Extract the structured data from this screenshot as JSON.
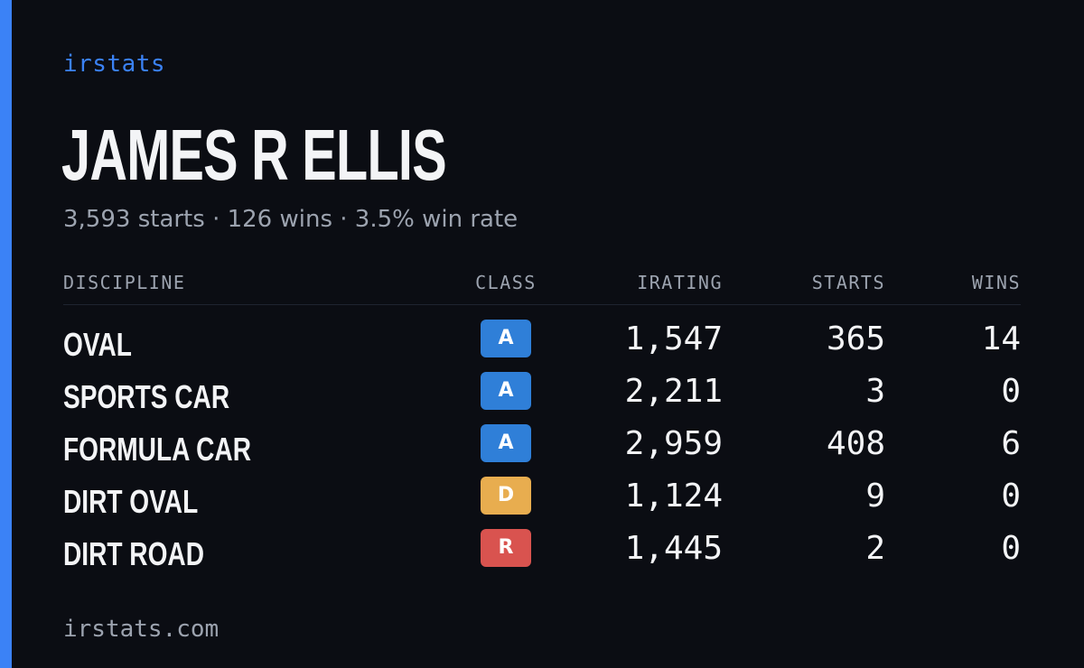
{
  "brand": "irstats",
  "driver": {
    "name": "JAMES R ELLIS",
    "summary": "3,593 starts · 126 wins · 3.5% win rate"
  },
  "columns": {
    "discipline": "DISCIPLINE",
    "class": "CLASS",
    "irating": "IRATING",
    "starts": "STARTS",
    "wins": "WINS"
  },
  "rows": [
    {
      "discipline": "OVAL",
      "class": "A",
      "class_color": "#2f7fd8",
      "irating": "1,547",
      "starts": "365",
      "wins": "14"
    },
    {
      "discipline": "SPORTS CAR",
      "class": "A",
      "class_color": "#2f7fd8",
      "irating": "2,211",
      "starts": "3",
      "wins": "0"
    },
    {
      "discipline": "FORMULA CAR",
      "class": "A",
      "class_color": "#2f7fd8",
      "irating": "2,959",
      "starts": "408",
      "wins": "6"
    },
    {
      "discipline": "DIRT OVAL",
      "class": "D",
      "class_color": "#e8ad4f",
      "irating": "1,124",
      "starts": "9",
      "wins": "0"
    },
    {
      "discipline": "DIRT ROAD",
      "class": "R",
      "class_color": "#d9534f",
      "irating": "1,445",
      "starts": "2",
      "wins": "0"
    }
  ],
  "footer": "irstats.com",
  "colors": {
    "accent": "#3b82f6",
    "background": "#0b0d13"
  }
}
